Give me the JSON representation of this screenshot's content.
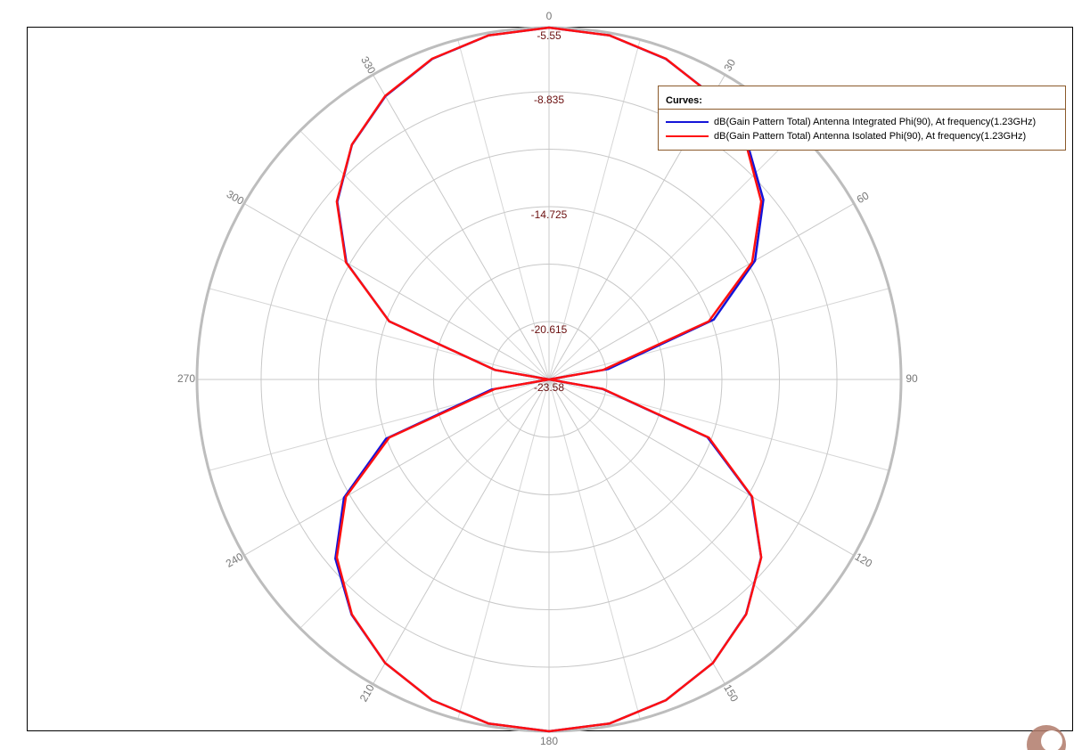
{
  "chart_data": {
    "type": "polar",
    "theta": [
      0,
      10,
      20,
      30,
      40,
      50,
      60,
      70,
      80,
      90,
      100,
      110,
      120,
      130,
      140,
      150,
      160,
      170,
      180,
      190,
      200,
      210,
      220,
      230,
      240,
      250,
      260,
      270,
      280,
      290,
      300,
      310,
      320,
      330,
      340,
      350
    ],
    "thetaticks": [
      0,
      30,
      60,
      90,
      120,
      150,
      180,
      210,
      240,
      270,
      300,
      330
    ],
    "rlim": [
      -23.58,
      -5.55
    ],
    "rticks": [
      -23.58,
      -20.615,
      -14.725,
      -8.835,
      -5.55
    ],
    "rminor": [
      -17.67,
      -11.78
    ],
    "legend_title": "Curves:",
    "legend_position": "upper right",
    "series": [
      {
        "name": "dB(Gain Pattern  Total) Antenna Integrated Phi(90), At frequency(1.23GHz)",
        "color": "#1414d8",
        "values": [
          -5.55,
          -5.68,
          -6.1,
          -6.78,
          -7.78,
          -9.25,
          -11.4,
          -14.6,
          -20.5,
          -23.58,
          -20.8,
          -14.95,
          -11.6,
          -9.4,
          -7.88,
          -6.8,
          -6.09,
          -5.68,
          -5.55,
          -5.68,
          -6.09,
          -6.8,
          -7.85,
          -9.3,
          -11.45,
          -14.7,
          -20.6,
          -23.58,
          -20.76,
          -14.87,
          -11.6,
          -9.42,
          -7.88,
          -6.82,
          -6.1,
          -5.68
        ]
      },
      {
        "name": "dB(Gain Pattern  Total) Antenna Isolated Phi(90), At frequency(1.23GHz)",
        "color": "#ff1010",
        "values": [
          -5.55,
          -5.68,
          -6.09,
          -6.8,
          -7.87,
          -9.39,
          -11.57,
          -14.87,
          -20.76,
          -23.58,
          -20.76,
          -14.87,
          -11.57,
          -9.39,
          -7.87,
          -6.8,
          -6.09,
          -5.68,
          -5.55,
          -5.68,
          -6.09,
          -6.8,
          -7.87,
          -9.39,
          -11.57,
          -14.87,
          -20.76,
          -23.58,
          -20.76,
          -14.87,
          -11.57,
          -9.39,
          -7.87,
          -6.8,
          -6.09,
          -5.68
        ]
      }
    ]
  }
}
